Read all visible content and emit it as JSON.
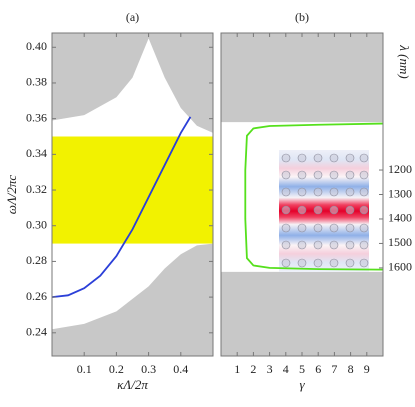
{
  "chart_data": [
    {
      "type": "line",
      "title": "(a)",
      "x_label": "κΛ/2π",
      "y_label": "ωΛ/2πc",
      "xlim": [
        0,
        0.5
      ],
      "ylim": [
        0.227,
        0.408
      ],
      "xticks": [
        0.1,
        0.2,
        0.3,
        0.4
      ],
      "yticks": [
        0.24,
        0.26,
        0.28,
        {
          "value": 0.3,
          "label": "0.30"
        },
        0.32,
        0.34,
        0.36,
        0.38,
        {
          "value": 0.4,
          "label": "0.40"
        }
      ],
      "span": [
        0.29,
        0.35
      ],
      "span_color": "#f2f200",
      "series": [
        {
          "color": "#c8c8c8",
          "fill": "top",
          "x": [
            0,
            0.1,
            0.2,
            0.25,
            0.3,
            0.35,
            0.4,
            0.45,
            0.5
          ],
          "values": [
            0.359,
            0.362,
            0.372,
            0.383,
            0.405,
            0.383,
            0.366,
            0.356,
            0.352
          ]
        },
        {
          "color": "#c8c8c8",
          "fill": "bottom",
          "x": [
            0,
            0.1,
            0.2,
            0.3,
            0.35,
            0.4,
            0.45,
            0.5
          ],
          "values": [
            0.242,
            0.245,
            0.252,
            0.266,
            0.276,
            0.284,
            0.289,
            0.29
          ]
        },
        {
          "color": "#2b3fd8",
          "x": [
            0,
            0.05,
            0.1,
            0.15,
            0.2,
            0.25,
            0.3,
            0.35,
            0.4,
            0.43
          ],
          "values": [
            0.26,
            0.261,
            0.265,
            0.272,
            0.283,
            0.298,
            0.316,
            0.334,
            0.352,
            0.361
          ]
        }
      ]
    },
    {
      "type": "line",
      "title": "(b)",
      "x_label": "γ",
      "y2_label": "λ (nm)",
      "xlim": [
        0,
        10
      ],
      "xticks": [
        1,
        2,
        3,
        4,
        5,
        6,
        7,
        8,
        9
      ],
      "y2lim": [
        1960,
        640
      ],
      "y2ticks": [
        1200,
        1300,
        1400,
        1500,
        1600
      ],
      "series": [
        {
          "color": "#c8c8c8",
          "fill": "top",
          "axis": "y2",
          "x": [
            0,
            10
          ],
          "values": [
            1004,
            1004
          ]
        },
        {
          "color": "#c8c8c8",
          "fill": "bottom",
          "axis": "y2",
          "x": [
            0,
            10
          ],
          "values": [
            1616,
            1616
          ]
        },
        {
          "color": "#55e01c",
          "axis": "y2",
          "x": [
            10,
            6,
            3,
            2,
            1.6,
            1.5,
            1.5,
            1.6,
            2,
            3,
            6,
            10
          ],
          "values": [
            1010,
            1015,
            1020,
            1030,
            1060,
            1200,
            1400,
            1560,
            1590,
            1600,
            1605,
            1607
          ]
        }
      ]
    }
  ]
}
